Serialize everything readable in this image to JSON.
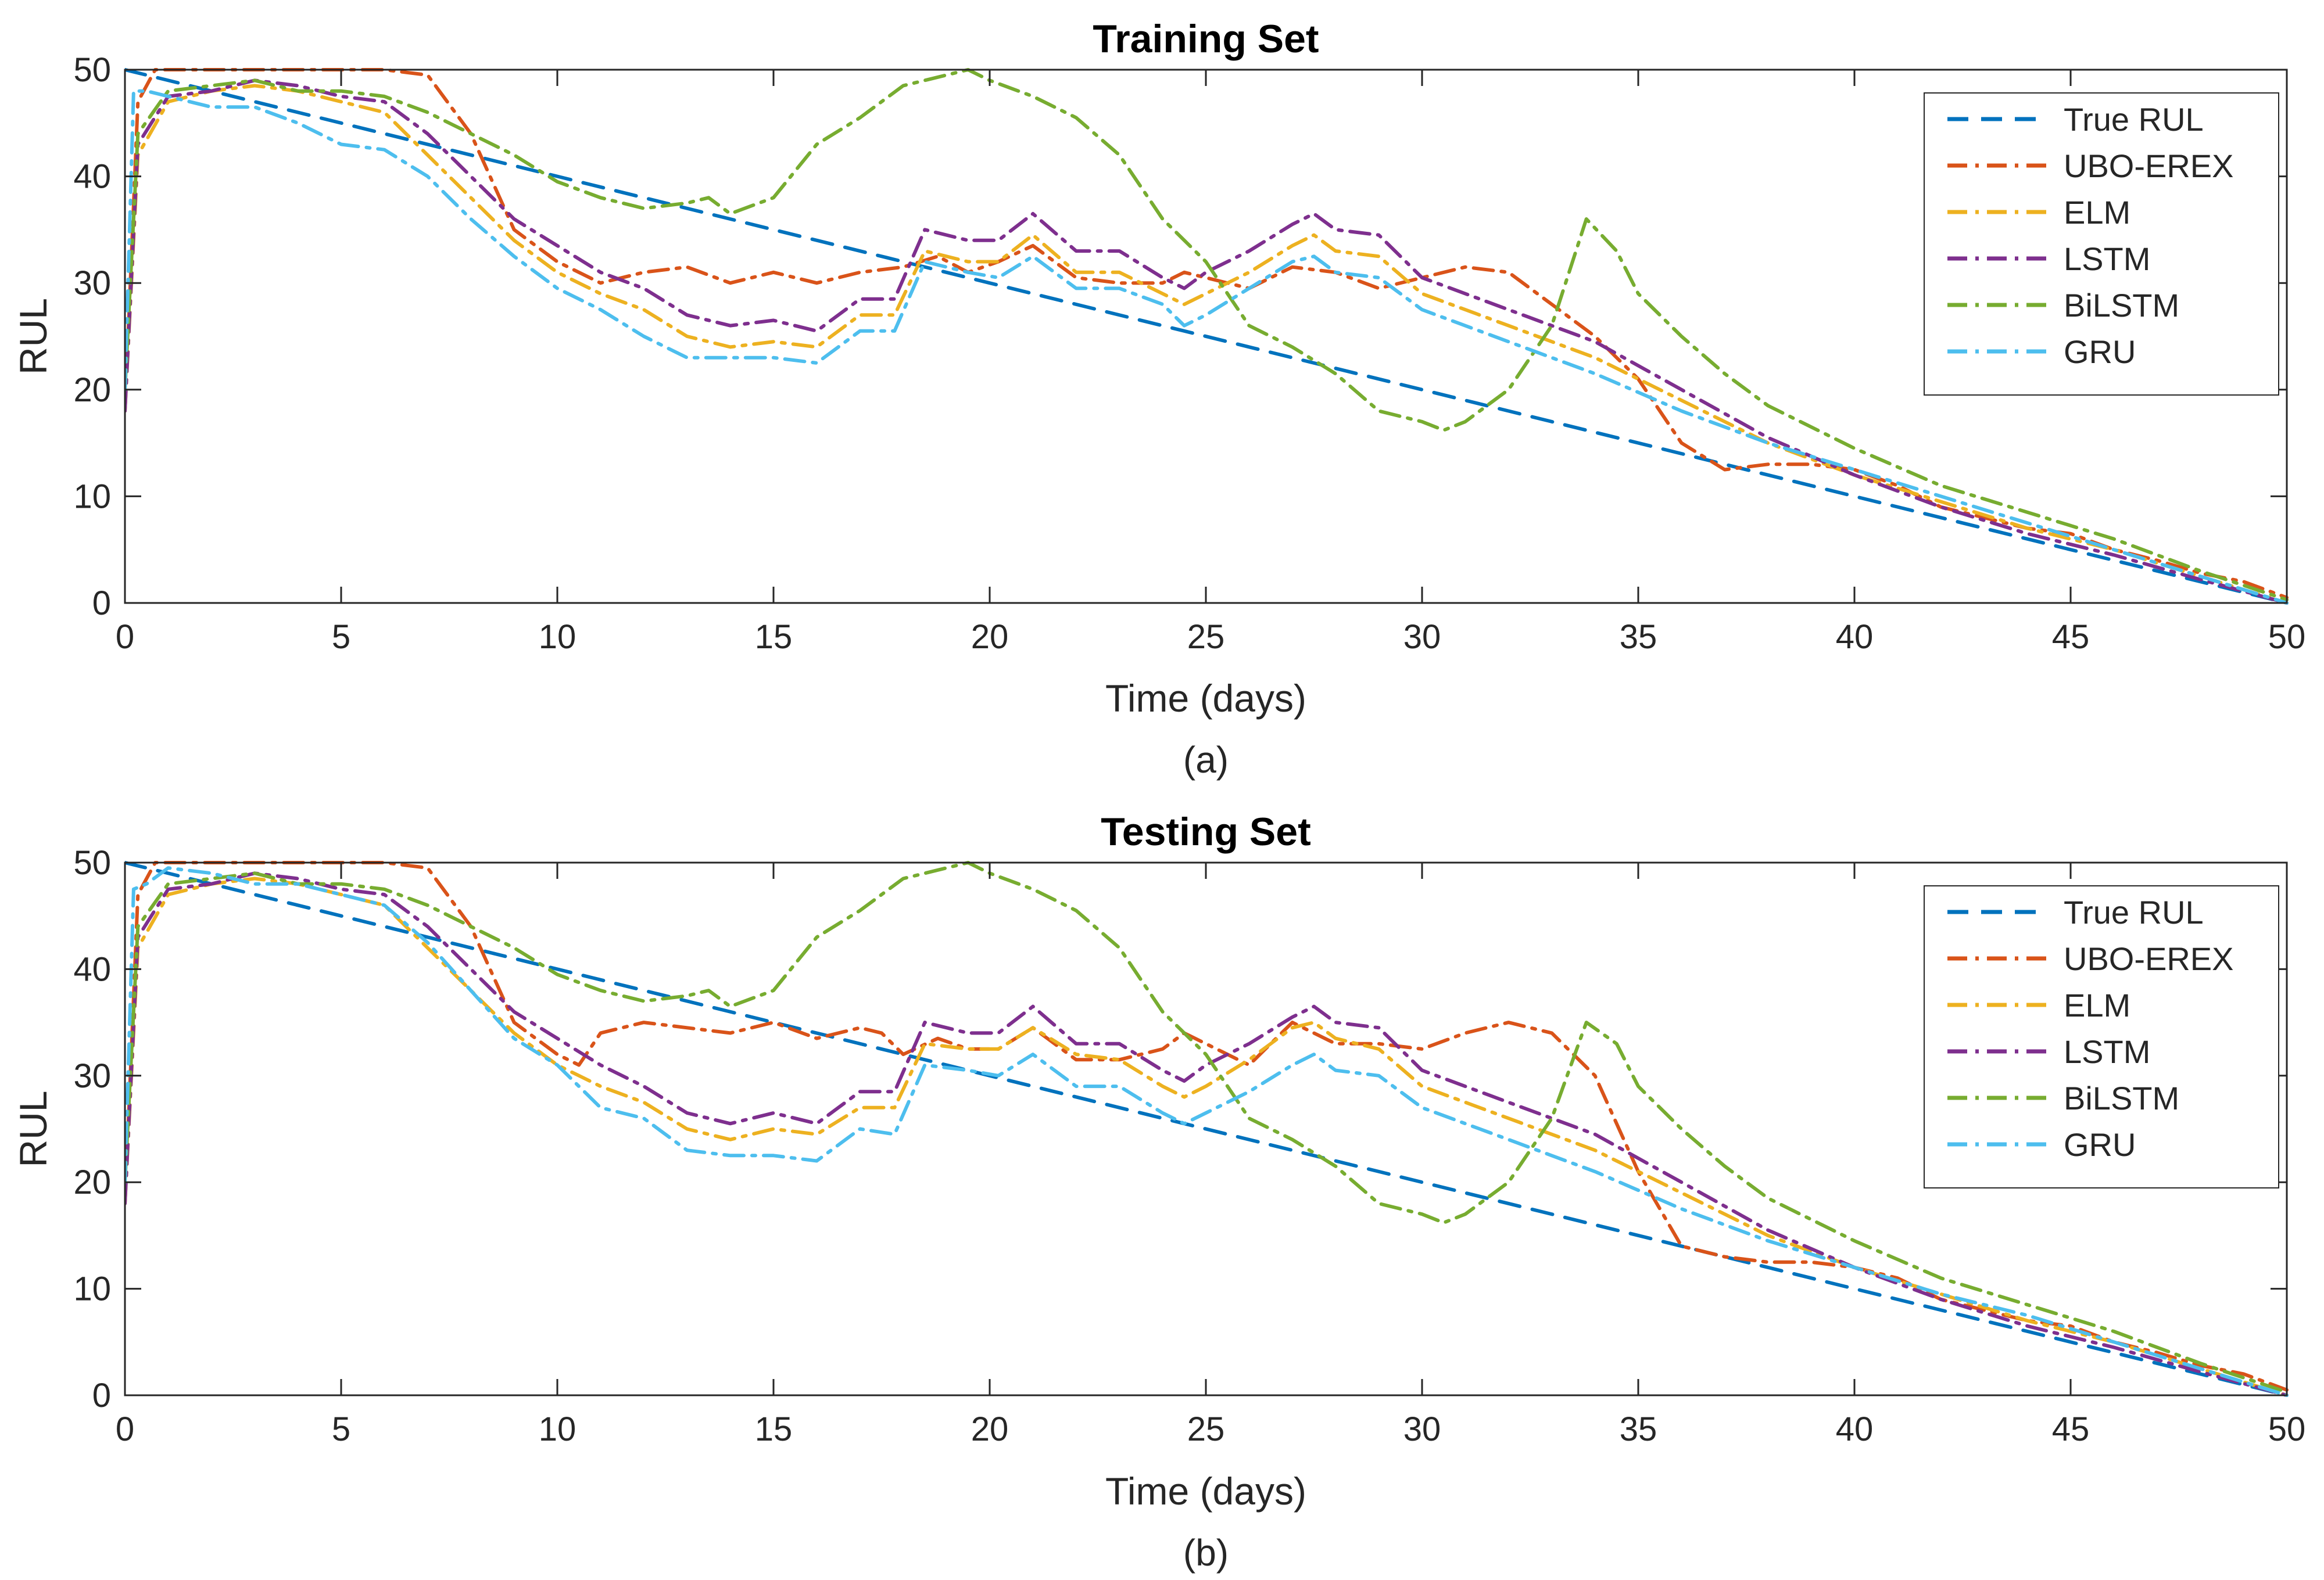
{
  "colors": {
    "True RUL": "#0072BD",
    "UBO-EREX": "#D95319",
    "ELM": "#EDB120",
    "LSTM": "#7E2F8E",
    "BiLSTM": "#77AC30",
    "GRU": "#4DBEEE"
  },
  "dash_styles": {
    "True RUL": "dashed",
    "UBO-EREX": "dash-dot",
    "ELM": "dash-dot",
    "LSTM": "dash-dot",
    "BiLSTM": "dash-dot",
    "GRU": "dash-dot"
  },
  "chart_data": [
    {
      "type": "line",
      "title": "Training Set",
      "caption": "(a)",
      "xlabel": "Time (days)",
      "ylabel": "RUL",
      "xlim": [
        0,
        50
      ],
      "ylim": [
        0,
        50
      ],
      "xticks": [
        0,
        5,
        10,
        15,
        20,
        25,
        30,
        35,
        40,
        45,
        50
      ],
      "yticks": [
        0,
        10,
        20,
        30,
        40,
        50
      ],
      "legend_position": "top-right",
      "series": [
        {
          "name": "True RUL",
          "x": [
            0,
            50
          ],
          "y": [
            50,
            0
          ]
        },
        {
          "name": "UBO-EREX",
          "x": [
            0,
            0.3,
            0.7,
            2,
            4,
            6,
            7,
            8,
            9,
            10,
            11,
            12,
            13,
            14,
            15,
            16,
            17,
            18,
            18.8,
            19.5,
            20.2,
            21,
            22,
            23,
            24,
            24.5,
            25,
            26,
            27,
            28,
            29,
            30,
            31,
            32,
            33,
            34,
            35,
            36,
            37,
            38,
            39,
            40,
            41,
            42,
            43,
            44,
            45,
            46,
            47,
            48,
            49,
            50
          ],
          "y": [
            18,
            47,
            50,
            50,
            50,
            50,
            49.5,
            44,
            35,
            32,
            30,
            31,
            31.5,
            30,
            31,
            30,
            31,
            31.5,
            32.5,
            31,
            32,
            33.5,
            30.5,
            30,
            30,
            31,
            30.5,
            29.5,
            31.5,
            31,
            29.5,
            30.5,
            31.5,
            31,
            28,
            25,
            21,
            15,
            12.5,
            13,
            13,
            12.5,
            11,
            9,
            8,
            7,
            6.5,
            5,
            4,
            2.8,
            2,
            0.5
          ]
        },
        {
          "name": "ELM",
          "x": [
            0,
            0.3,
            1,
            2,
            3,
            4,
            5,
            6,
            7,
            8,
            9,
            10,
            11,
            12,
            13,
            14,
            15,
            16,
            17,
            17.8,
            18.5,
            19.5,
            20.2,
            21,
            22,
            23,
            24,
            24.5,
            25,
            26,
            27,
            27.5,
            28,
            29,
            30,
            32,
            34,
            36,
            38,
            40,
            42,
            44,
            46,
            48,
            50
          ],
          "y": [
            18,
            42,
            47,
            48,
            48.5,
            48,
            47,
            46,
            42,
            38,
            34,
            31,
            29,
            27.5,
            25,
            24,
            24.5,
            24,
            27,
            27,
            33,
            32,
            32,
            34.5,
            31,
            31,
            29,
            28,
            29,
            31,
            33.5,
            34.5,
            33,
            32.5,
            29,
            26,
            23,
            19,
            15,
            12,
            9.5,
            7,
            5,
            2.5,
            0
          ]
        },
        {
          "name": "LSTM",
          "x": [
            0,
            0.3,
            1,
            2,
            3,
            4,
            5,
            6,
            7,
            8,
            9,
            10,
            11,
            12,
            13,
            14,
            15,
            16,
            17,
            17.8,
            18.5,
            19.5,
            20.2,
            21,
            22,
            23,
            24,
            24.5,
            25,
            26,
            27,
            27.5,
            28,
            29,
            30,
            32,
            34,
            36,
            38,
            40,
            42,
            44,
            46,
            48,
            50
          ],
          "y": [
            18,
            43,
            47.5,
            48,
            49,
            48.5,
            47.5,
            47,
            44,
            40,
            36,
            33.5,
            31,
            29.5,
            27,
            26,
            26.5,
            25.5,
            28.5,
            28.5,
            35,
            34,
            34,
            36.5,
            33,
            33,
            30.5,
            29.5,
            31,
            33,
            35.5,
            36.5,
            35,
            34.5,
            30.5,
            27.5,
            24.5,
            20,
            15.5,
            12,
            9,
            6.5,
            4.5,
            2.2,
            0
          ]
        },
        {
          "name": "BiLSTM",
          "x": [
            0,
            0.3,
            1,
            2,
            3,
            4,
            5,
            6,
            7,
            8,
            9,
            10,
            11,
            12,
            13,
            13.5,
            14,
            15,
            16,
            17,
            18,
            19,
            19.5,
            20,
            21,
            22,
            23,
            24,
            25,
            26,
            27,
            28,
            29,
            30,
            30.5,
            31,
            32,
            33,
            33.8,
            34.5,
            35,
            36,
            37,
            38,
            40,
            42,
            44,
            46,
            48,
            50
          ],
          "y": [
            20,
            44,
            48,
            48.5,
            49,
            48,
            48,
            47.5,
            46,
            44,
            42,
            39.5,
            38,
            37,
            37.5,
            38,
            36.5,
            38,
            43,
            45.5,
            48.5,
            49.5,
            50,
            49,
            47.5,
            45.5,
            42,
            36,
            32,
            26,
            24,
            21.5,
            18,
            17,
            16.2,
            17,
            20,
            26,
            36,
            33,
            29,
            25,
            21.5,
            18.5,
            14.5,
            11,
            8.5,
            6,
            3,
            0.3
          ]
        },
        {
          "name": "GRU",
          "x": [
            0,
            0.2,
            0.5,
            1,
            2,
            3,
            4,
            5,
            6,
            7,
            8,
            9,
            10,
            11,
            12,
            13,
            14,
            15,
            16,
            17,
            17.8,
            18.5,
            19.5,
            20.2,
            21,
            22,
            23,
            24,
            24.5,
            25,
            26,
            27,
            27.5,
            28,
            29,
            30,
            32,
            34,
            36,
            38,
            40,
            42,
            44,
            46,
            48,
            50
          ],
          "y": [
            20,
            48,
            48,
            47.5,
            46.5,
            46.5,
            45,
            43,
            42.5,
            40,
            36,
            32.5,
            29.5,
            27.5,
            25,
            23,
            23,
            23,
            22.5,
            25.5,
            25.5,
            32,
            31,
            30.5,
            32.5,
            29.5,
            29.5,
            28,
            26,
            27,
            29.5,
            32,
            32.5,
            31,
            30.5,
            27.5,
            24.5,
            21.5,
            18,
            15,
            12.5,
            10,
            7.5,
            5,
            2.5,
            0
          ]
        }
      ]
    },
    {
      "type": "line",
      "title": "Testing Set",
      "caption": "(b)",
      "xlabel": "Time (days)",
      "ylabel": "RUL",
      "xlim": [
        0,
        50
      ],
      "ylim": [
        0,
        50
      ],
      "xticks": [
        0,
        5,
        10,
        15,
        20,
        25,
        30,
        35,
        40,
        45,
        50
      ],
      "yticks": [
        0,
        10,
        20,
        30,
        40,
        50
      ],
      "legend_position": "top-right",
      "series": [
        {
          "name": "True RUL",
          "x": [
            0,
            50
          ],
          "y": [
            50,
            0
          ]
        },
        {
          "name": "UBO-EREX",
          "x": [
            0,
            0.3,
            0.7,
            2,
            4,
            6,
            7,
            8,
            9,
            10,
            10.5,
            11,
            12,
            13,
            14,
            15,
            16,
            17,
            17.5,
            18,
            18.8,
            19.5,
            20.2,
            21,
            22,
            23,
            24,
            24.5,
            25,
            26,
            27,
            28,
            29,
            30,
            31,
            32,
            33,
            34,
            35,
            36,
            37,
            38,
            39,
            40,
            41,
            42,
            43,
            44,
            45,
            46,
            47,
            48,
            49,
            50
          ],
          "y": [
            18,
            47,
            50,
            50,
            50,
            50,
            49.5,
            44,
            35,
            32,
            31,
            34,
            35,
            34.5,
            34,
            35,
            33.5,
            34.5,
            34,
            32,
            33.5,
            32.5,
            32.5,
            34.5,
            31.5,
            31.5,
            32.5,
            34,
            33,
            31,
            35,
            33,
            33,
            32.5,
            34,
            35,
            34,
            30,
            21,
            14,
            13,
            12.5,
            12.5,
            12,
            11,
            9,
            8,
            7,
            6.5,
            5,
            4,
            2.8,
            2,
            0.5
          ]
        },
        {
          "name": "ELM",
          "x": [
            0,
            0.3,
            1,
            2,
            3,
            4,
            5,
            6,
            7,
            8,
            9,
            10,
            11,
            12,
            13,
            14,
            15,
            16,
            17,
            17.8,
            18.5,
            19.5,
            20.2,
            21,
            22,
            23,
            24,
            24.5,
            25,
            26,
            27,
            27.5,
            28,
            29,
            30,
            32,
            34,
            36,
            38,
            40,
            42,
            44,
            46,
            48,
            50
          ],
          "y": [
            18,
            42,
            47,
            48,
            48.5,
            48,
            47,
            46,
            42,
            38,
            34,
            31,
            29,
            27.5,
            25,
            24,
            25,
            24.5,
            27,
            27,
            33,
            32.5,
            32.5,
            34.5,
            32,
            31.5,
            29,
            28,
            29,
            31.5,
            34.5,
            35,
            33.5,
            32.5,
            29,
            26,
            23,
            19,
            15,
            12,
            9.5,
            7,
            5,
            2.5,
            0
          ]
        },
        {
          "name": "LSTM",
          "x": [
            0,
            0.3,
            1,
            2,
            3,
            4,
            5,
            6,
            7,
            8,
            9,
            10,
            11,
            12,
            13,
            14,
            15,
            16,
            17,
            17.8,
            18.5,
            19.5,
            20.2,
            21,
            22,
            23,
            24,
            24.5,
            25,
            26,
            27,
            27.5,
            28,
            29,
            30,
            32,
            34,
            36,
            38,
            40,
            42,
            44,
            46,
            48,
            50
          ],
          "y": [
            18,
            43,
            47.5,
            48,
            49,
            48.5,
            47.5,
            47,
            44,
            40,
            36,
            33.5,
            31,
            29,
            26.5,
            25.5,
            26.5,
            25.5,
            28.5,
            28.5,
            35,
            34,
            34,
            36.5,
            33,
            33,
            30.5,
            29.5,
            31,
            33,
            35.5,
            36.5,
            35,
            34.5,
            30.5,
            27.5,
            24.5,
            20,
            15.5,
            12,
            9,
            6.5,
            4.5,
            2.2,
            0
          ]
        },
        {
          "name": "BiLSTM",
          "x": [
            0,
            0.3,
            1,
            2,
            3,
            4,
            5,
            6,
            7,
            8,
            9,
            10,
            11,
            12,
            13,
            13.5,
            14,
            15,
            16,
            17,
            18,
            19,
            19.5,
            20,
            21,
            22,
            23,
            24,
            25,
            26,
            27,
            28,
            29,
            30,
            30.5,
            31,
            32,
            33,
            33.8,
            34.5,
            35,
            36,
            37,
            38,
            40,
            42,
            44,
            46,
            48,
            50
          ],
          "y": [
            20,
            44,
            48,
            48.5,
            49,
            48,
            48,
            47.5,
            46,
            44,
            42,
            39.5,
            38,
            37,
            37.5,
            38,
            36.5,
            38,
            43,
            45.5,
            48.5,
            49.5,
            50,
            49,
            47.5,
            45.5,
            42,
            36,
            32,
            26,
            24,
            21.5,
            18,
            17,
            16.2,
            17,
            20,
            26,
            35,
            33,
            29,
            25,
            21.5,
            18.5,
            14.5,
            11,
            8.5,
            6,
            3,
            0.3
          ]
        },
        {
          "name": "GRU",
          "x": [
            0,
            0.2,
            0.5,
            1,
            2,
            3,
            4,
            5,
            6,
            7,
            8,
            9,
            10,
            11,
            12,
            13,
            14,
            15,
            16,
            17,
            17.8,
            18.5,
            19.5,
            20.2,
            21,
            22,
            23,
            24,
            24.5,
            25,
            26,
            27,
            27.5,
            28,
            29,
            30,
            32,
            34,
            36,
            38,
            40,
            42,
            44,
            46,
            48,
            50
          ],
          "y": [
            20,
            47.5,
            48,
            49.5,
            49,
            48,
            48,
            47,
            46,
            42.5,
            38,
            33.5,
            31,
            27,
            26,
            23,
            22.5,
            22.5,
            22,
            25,
            24.5,
            31,
            30.5,
            30,
            32,
            29,
            29,
            26.5,
            25.5,
            26.5,
            28.5,
            31,
            32,
            30.5,
            30,
            27,
            24,
            21,
            17.5,
            14.5,
            12,
            9.5,
            7.5,
            5,
            2.5,
            0
          ]
        }
      ]
    }
  ]
}
